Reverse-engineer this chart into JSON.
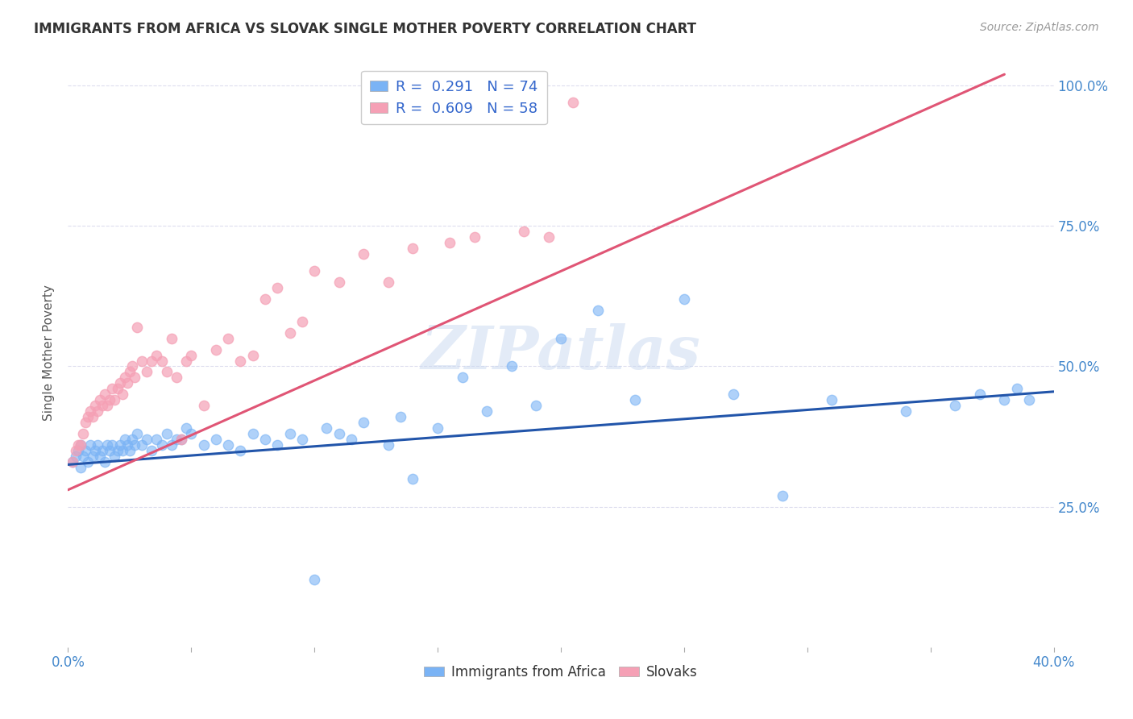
{
  "title": "IMMIGRANTS FROM AFRICA VS SLOVAK SINGLE MOTHER POVERTY CORRELATION CHART",
  "source": "Source: ZipAtlas.com",
  "ylabel": "Single Mother Poverty",
  "right_yticks": [
    "100.0%",
    "75.0%",
    "50.0%",
    "25.0%"
  ],
  "right_ytick_vals": [
    1.0,
    0.75,
    0.5,
    0.25
  ],
  "xlim": [
    0.0,
    0.4
  ],
  "ylim": [
    0.0,
    1.05
  ],
  "legend1_label": "R =  0.291   N = 74",
  "legend2_label": "R =  0.609   N = 58",
  "legend1_color": "#7ab3f5",
  "legend2_color": "#f5a0b5",
  "trendline1_color": "#2255aa",
  "trendline2_color": "#e05575",
  "watermark": "ZIPatlas",
  "background_color": "#ffffff",
  "grid_color": "#ddddee",
  "scatter1_x": [
    0.002,
    0.003,
    0.004,
    0.005,
    0.005,
    0.006,
    0.007,
    0.008,
    0.009,
    0.01,
    0.011,
    0.012,
    0.013,
    0.014,
    0.015,
    0.016,
    0.017,
    0.018,
    0.019,
    0.02,
    0.021,
    0.022,
    0.023,
    0.024,
    0.025,
    0.026,
    0.027,
    0.028,
    0.03,
    0.032,
    0.034,
    0.036,
    0.038,
    0.04,
    0.042,
    0.044,
    0.046,
    0.048,
    0.05,
    0.055,
    0.06,
    0.065,
    0.07,
    0.075,
    0.08,
    0.085,
    0.09,
    0.095,
    0.1,
    0.105,
    0.11,
    0.115,
    0.12,
    0.13,
    0.135,
    0.14,
    0.15,
    0.16,
    0.17,
    0.18,
    0.19,
    0.2,
    0.215,
    0.23,
    0.25,
    0.27,
    0.29,
    0.31,
    0.34,
    0.36,
    0.37,
    0.38,
    0.385,
    0.39
  ],
  "scatter1_y": [
    0.33,
    0.34,
    0.35,
    0.32,
    0.36,
    0.34,
    0.35,
    0.33,
    0.36,
    0.34,
    0.35,
    0.36,
    0.34,
    0.35,
    0.33,
    0.36,
    0.35,
    0.36,
    0.34,
    0.35,
    0.36,
    0.35,
    0.37,
    0.36,
    0.35,
    0.37,
    0.36,
    0.38,
    0.36,
    0.37,
    0.35,
    0.37,
    0.36,
    0.38,
    0.36,
    0.37,
    0.37,
    0.39,
    0.38,
    0.36,
    0.37,
    0.36,
    0.35,
    0.38,
    0.37,
    0.36,
    0.38,
    0.37,
    0.12,
    0.39,
    0.38,
    0.37,
    0.4,
    0.36,
    0.41,
    0.3,
    0.39,
    0.48,
    0.42,
    0.5,
    0.43,
    0.55,
    0.6,
    0.44,
    0.62,
    0.45,
    0.27,
    0.44,
    0.42,
    0.43,
    0.45,
    0.44,
    0.46,
    0.44
  ],
  "scatter2_x": [
    0.002,
    0.003,
    0.004,
    0.005,
    0.006,
    0.007,
    0.008,
    0.009,
    0.01,
    0.011,
    0.012,
    0.013,
    0.014,
    0.015,
    0.016,
    0.017,
    0.018,
    0.019,
    0.02,
    0.021,
    0.022,
    0.023,
    0.024,
    0.025,
    0.026,
    0.027,
    0.028,
    0.03,
    0.032,
    0.034,
    0.036,
    0.038,
    0.04,
    0.042,
    0.044,
    0.046,
    0.048,
    0.05,
    0.055,
    0.06,
    0.065,
    0.07,
    0.075,
    0.08,
    0.085,
    0.09,
    0.095,
    0.1,
    0.11,
    0.12,
    0.13,
    0.14,
    0.155,
    0.165,
    0.175,
    0.185,
    0.195,
    0.205
  ],
  "scatter2_y": [
    0.33,
    0.35,
    0.36,
    0.36,
    0.38,
    0.4,
    0.41,
    0.42,
    0.41,
    0.43,
    0.42,
    0.44,
    0.43,
    0.45,
    0.43,
    0.44,
    0.46,
    0.44,
    0.46,
    0.47,
    0.45,
    0.48,
    0.47,
    0.49,
    0.5,
    0.48,
    0.57,
    0.51,
    0.49,
    0.51,
    0.52,
    0.51,
    0.49,
    0.55,
    0.48,
    0.37,
    0.51,
    0.52,
    0.43,
    0.53,
    0.55,
    0.51,
    0.52,
    0.62,
    0.64,
    0.56,
    0.58,
    0.67,
    0.65,
    0.7,
    0.65,
    0.71,
    0.72,
    0.73,
    0.97,
    0.74,
    0.73,
    0.97
  ],
  "trendline1_x0": 0.0,
  "trendline1_x1": 0.4,
  "trendline1_y0": 0.325,
  "trendline1_y1": 0.455,
  "trendline2_x0": 0.0,
  "trendline2_x1": 0.38,
  "trendline2_y0": 0.28,
  "trendline2_y1": 1.02
}
